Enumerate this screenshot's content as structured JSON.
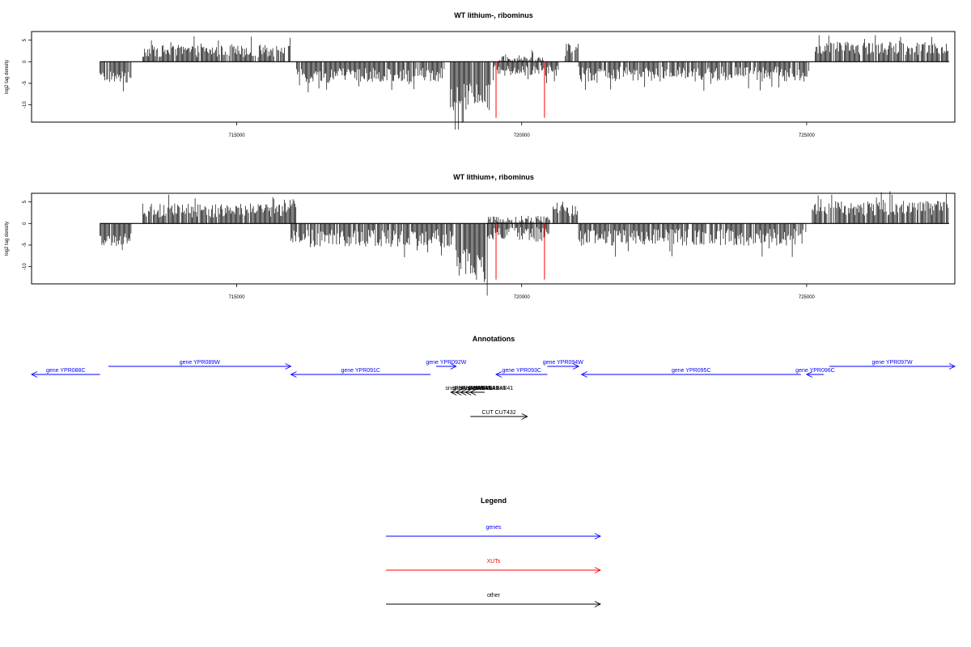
{
  "colors": {
    "genes": "#0000ff",
    "xuts": "#ff0000",
    "other": "#000000",
    "frame": "#000000"
  },
  "chart_data": [
    {
      "type": "bar",
      "title": "WT lithium-, ribominus",
      "ylabel": "log2 tag density",
      "xlim": [
        711400,
        727600
      ],
      "ylim": [
        -14,
        7
      ],
      "xticks": [
        715000,
        720000,
        725000
      ],
      "xtick_labels": [
        "715000",
        "720000",
        "725000"
      ],
      "yticks": [
        5,
        0,
        -5,
        -10
      ],
      "ytick_labels": [
        "5",
        "0",
        "-5",
        "-10"
      ],
      "baseline_range": [
        712600,
        727500
      ],
      "red_markers": [
        {
          "x": 719550,
          "y": -13
        },
        {
          "x": 720400,
          "y": -13
        }
      ],
      "segments": [
        {
          "from": 712600,
          "to": 713150,
          "sign": -1,
          "base": 3.2,
          "amp": 2.0
        },
        {
          "from": 713350,
          "to": 715950,
          "sign": 1,
          "base": 2.2,
          "amp": 2.0
        },
        {
          "from": 716050,
          "to": 718650,
          "sign": -1,
          "base": 2.8,
          "amp": 2.4
        },
        {
          "from": 718750,
          "to": 719450,
          "sign": -1,
          "base": 7.5,
          "amp": 4.5
        },
        {
          "from": 719500,
          "to": 720650,
          "sign": -1,
          "base": 1.8,
          "amp": 1.8
        },
        {
          "from": 719600,
          "to": 720400,
          "sign": 1,
          "base": 0.5,
          "amp": 1.2
        },
        {
          "from": 720750,
          "to": 721000,
          "sign": 1,
          "base": 2.6,
          "amp": 2.4
        },
        {
          "from": 721000,
          "to": 725050,
          "sign": -1,
          "base": 2.5,
          "amp": 2.5
        },
        {
          "from": 725150,
          "to": 727500,
          "sign": 1,
          "base": 2.8,
          "amp": 2.2
        }
      ]
    },
    {
      "type": "bar",
      "title": "WT lithium+, ribominus",
      "ylabel": "log2 tag density",
      "xlim": [
        711400,
        727600
      ],
      "ylim": [
        -14,
        7
      ],
      "xticks": [
        715000,
        720000,
        725000
      ],
      "xtick_labels": [
        "715000",
        "720000",
        "725000"
      ],
      "yticks": [
        5,
        0,
        -5,
        -10
      ],
      "ytick_labels": [
        "5",
        "0",
        "-5",
        "-10"
      ],
      "baseline_range": [
        712600,
        727500
      ],
      "red_markers": [
        {
          "x": 719550,
          "y": -13
        },
        {
          "x": 720400,
          "y": -13
        }
      ],
      "segments": [
        {
          "from": 712600,
          "to": 713150,
          "sign": -1,
          "base": 3.5,
          "amp": 2.2
        },
        {
          "from": 713350,
          "to": 715800,
          "sign": 1,
          "base": 2.7,
          "amp": 2.3
        },
        {
          "from": 715800,
          "to": 716050,
          "sign": 1,
          "base": 3.5,
          "amp": 2.5
        },
        {
          "from": 715950,
          "to": 718800,
          "sign": -1,
          "base": 3.0,
          "amp": 3.0
        },
        {
          "from": 718850,
          "to": 719400,
          "sign": -1,
          "base": 8.0,
          "amp": 5.0
        },
        {
          "from": 719400,
          "to": 720500,
          "sign": -1,
          "base": 2.2,
          "amp": 2.5
        },
        {
          "from": 719400,
          "to": 720500,
          "sign": 1,
          "base": 0.6,
          "amp": 1.4
        },
        {
          "from": 720550,
          "to": 720980,
          "sign": 1,
          "base": 3.0,
          "amp": 2.2
        },
        {
          "from": 721000,
          "to": 725000,
          "sign": -1,
          "base": 2.8,
          "amp": 2.8
        },
        {
          "from": 725100,
          "to": 727500,
          "sign": 1,
          "base": 3.2,
          "amp": 2.5
        }
      ]
    }
  ],
  "annotations": {
    "title": "Annotations",
    "items": [
      {
        "label": "gene YPR088C",
        "from": 712600,
        "to": 711400,
        "row": 1,
        "class": "genes"
      },
      {
        "label": "gene YPR089W",
        "from": 712750,
        "to": 715950,
        "row": 0,
        "class": "genes"
      },
      {
        "label": "gene YPR091C",
        "from": 718400,
        "to": 715950,
        "row": 1,
        "class": "genes"
      },
      {
        "label": "gene YPR092W",
        "from": 718500,
        "to": 718850,
        "row": 0,
        "class": "genes"
      },
      {
        "label": "gene YPR093C",
        "from": 720450,
        "to": 719550,
        "row": 1,
        "class": "genes"
      },
      {
        "label": "gene YPR094W",
        "from": 720450,
        "to": 721000,
        "row": 0,
        "class": "genes"
      },
      {
        "label": "gene YPR095C",
        "from": 724900,
        "to": 721050,
        "row": 1,
        "class": "genes"
      },
      {
        "label": "gene YPR096C",
        "from": 725300,
        "to": 725000,
        "row": 1,
        "class": "genes"
      },
      {
        "label": "gene YPR097W",
        "from": 725400,
        "to": 727600,
        "row": 0,
        "class": "genes"
      },
      {
        "label": "CUT CUT432",
        "from": 719100,
        "to": 720100,
        "row": 3,
        "class": "other"
      }
    ],
    "overlap_labels": [
      {
        "label": "snoRNA snR41",
        "x": 719000,
        "from": 719350,
        "to": 718900
      }
    ]
  },
  "legend": {
    "title": "Legend",
    "items": [
      {
        "label": "genes",
        "class": "genes"
      },
      {
        "label": "XUTs",
        "class": "xuts"
      },
      {
        "label": "other",
        "class": "other"
      }
    ]
  }
}
